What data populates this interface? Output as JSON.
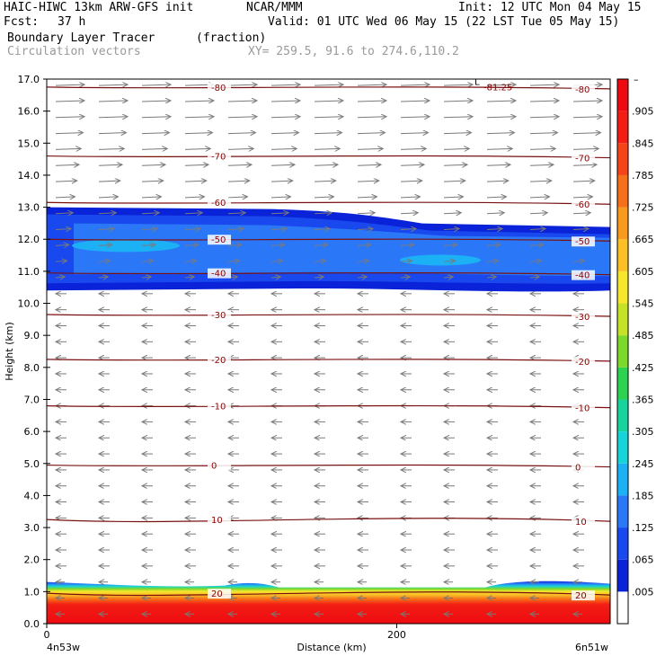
{
  "header": {
    "title_left": "HAIC-HIWC 13km ARW-GFS init",
    "org": "NCAR/MMM",
    "init": "Init: 12 UTC Mon 04 May 15",
    "fcst_label": "Fcst:",
    "fcst_value": "37 h",
    "valid": "Valid: 01 UTC Wed 06 May 15 (22 LST Tue 05 May 15)",
    "field": "Boundary Layer Tracer",
    "units": "(fraction)",
    "overlay": "Circulation vectors",
    "xsect": "XY= 259.5, 91.6 to 274.6,110.2"
  },
  "chart_data": {
    "type": "heatmap",
    "subtype": "vertical cross-section",
    "title": "Boundary Layer Tracer",
    "units": "(fraction)",
    "xlabel": "Distance (km)",
    "ylabel": "Height (km)",
    "xlim": [
      0,
      322
    ],
    "ylim": [
      0,
      17
    ],
    "x_ticks": [
      0,
      200
    ],
    "x_ends": [
      "4n53w",
      "6n51w"
    ],
    "y_ticks": [
      "0.0",
      "1.0",
      "2.0",
      "3.0",
      "4.0",
      "5.0",
      "6.0",
      "7.0",
      "8.0",
      "9.0",
      "10.0",
      "11.0",
      "12.0",
      "13.0",
      "14.0",
      "15.0",
      "16.0",
      "17.0"
    ],
    "colorbar": {
      "labels": [
        ".005",
        ".065",
        ".125",
        ".185",
        ".245",
        ".305",
        ".365",
        ".425",
        ".485",
        ".545",
        ".605",
        ".665",
        ".725",
        ".785",
        ".845",
        ".905"
      ],
      "colors": [
        "#ffffff",
        "#0a22d8",
        "#1848ee",
        "#2a78f8",
        "#1cb0f4",
        "#16d4d8",
        "#18d49c",
        "#2cd250",
        "#7cd82a",
        "#c6e226",
        "#f6e62c",
        "#fbc026",
        "#f99a1e",
        "#f6701a",
        "#f44418",
        "#f21e14",
        "#ee0a10"
      ]
    },
    "temperature_contours_C": [
      {
        "label": "-80",
        "y": 16.75
      },
      {
        "label": "-81.25",
        "y": 16.6
      },
      {
        "label": "-70",
        "y": 14.6
      },
      {
        "label": "-60",
        "y": 13.15
      },
      {
        "label": "-50",
        "y": 12.0
      },
      {
        "label": "-40",
        "y": 10.95
      },
      {
        "label": "-30",
        "y": 9.65
      },
      {
        "label": "-20",
        "y": 8.25
      },
      {
        "label": "-10",
        "y": 6.8
      },
      {
        "label": "0",
        "y": 4.95
      },
      {
        "label": "10",
        "y": 3.25
      },
      {
        "label": "20",
        "y": 0.95
      }
    ],
    "low_marker": "L",
    "tracer_layers": [
      {
        "name": "cloud outflow layer",
        "bottom_km": 10.4,
        "top_km": 13.0,
        "peak_value": 0.125
      },
      {
        "name": "boundary layer",
        "bottom_km": 0.0,
        "top_km": 1.3,
        "peak_value": 0.965
      }
    ],
    "wind_vectors": {
      "upper_direction": "right (westerly)",
      "lower_direction": "left (easterly)",
      "reversal_height_km": 10.3
    }
  }
}
